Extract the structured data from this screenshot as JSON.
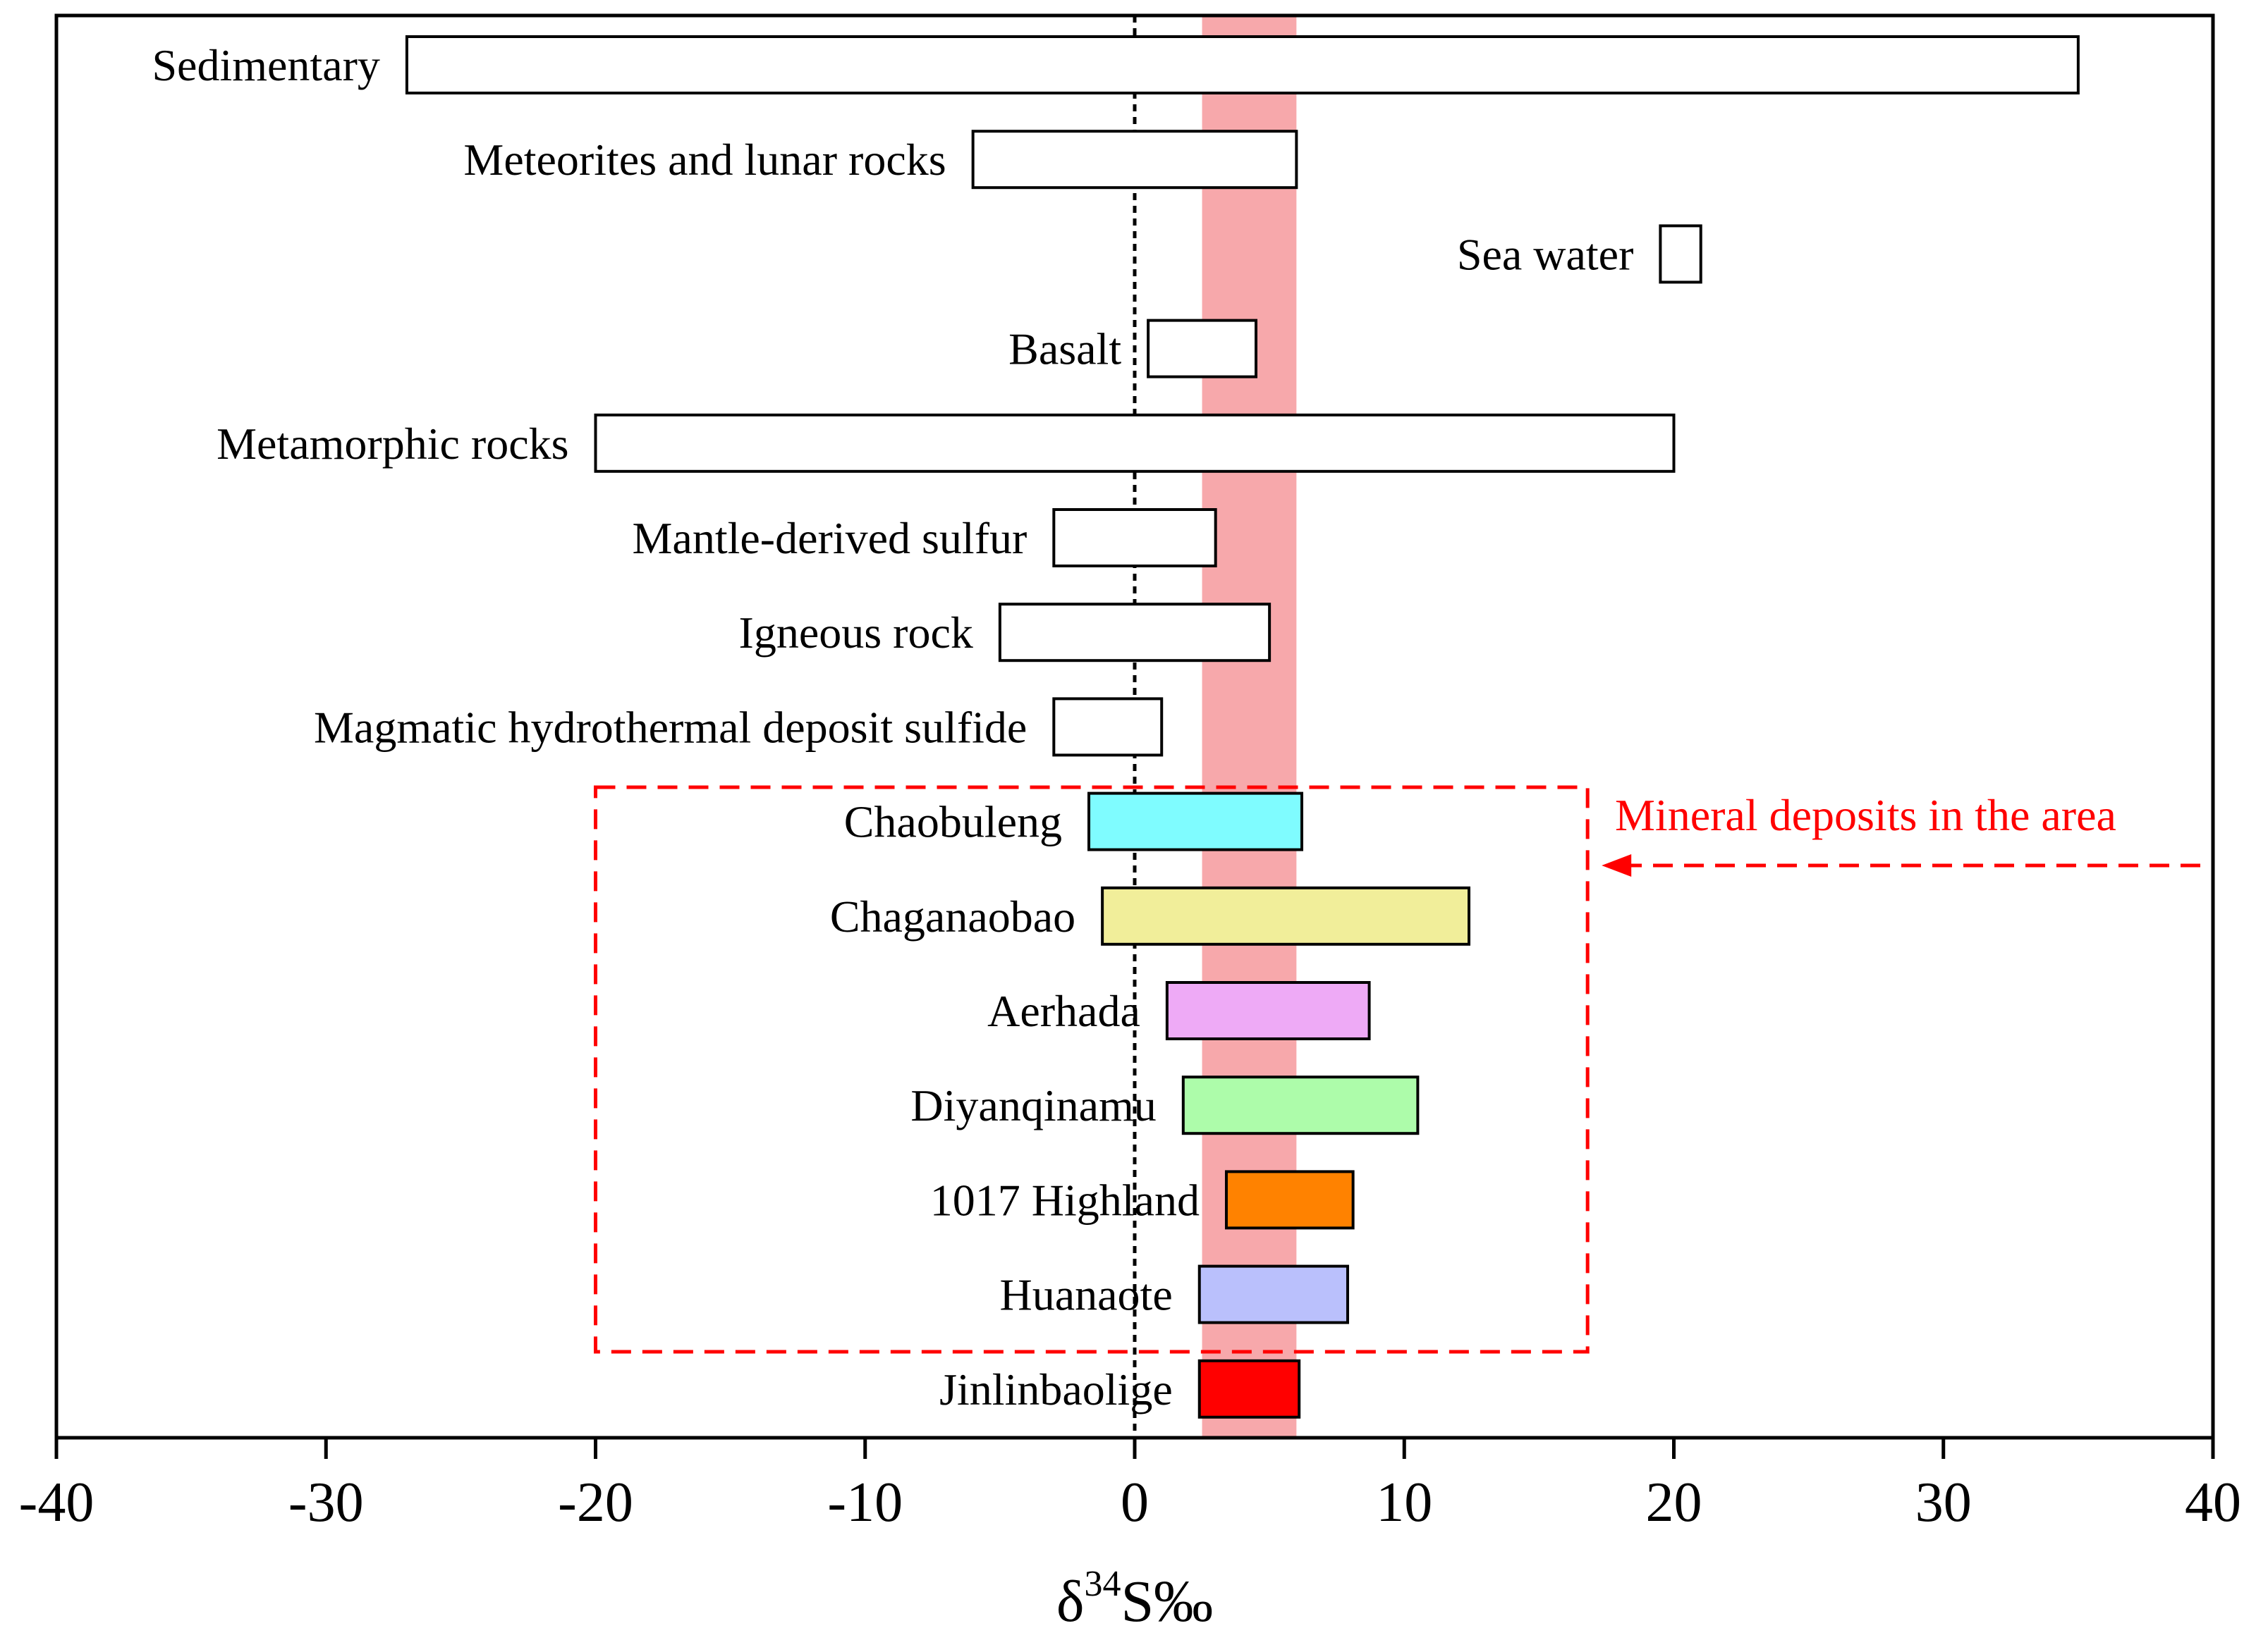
{
  "chart_data": {
    "type": "range-bar",
    "xlabel": "δ34S‰",
    "xlabel_parts": {
      "delta": "δ",
      "sup": "34",
      "rest": "S‰"
    },
    "xlim": [
      -40,
      40
    ],
    "xticks": [
      "-40",
      "-30",
      "-20",
      "-10",
      "0",
      "10",
      "20",
      "30",
      "40"
    ],
    "reference_line": {
      "x": 0,
      "style": "dotted"
    },
    "highlight_band": {
      "range": [
        2.5,
        6.0
      ],
      "color": "#f7a8ab"
    },
    "bars": [
      {
        "label": "Sedimentary",
        "min": -27,
        "max": 35,
        "fill": "#ffffff"
      },
      {
        "label": "Meteorites and lunar rocks",
        "min": -6,
        "max": 6,
        "fill": "#ffffff"
      },
      {
        "label": "Sea water",
        "min": 19.5,
        "max": 21,
        "fill": "#ffffff"
      },
      {
        "label": "Basalt",
        "min": 0.5,
        "max": 4.5,
        "fill": "#ffffff"
      },
      {
        "label": "Metamorphic rocks",
        "min": -20,
        "max": 20,
        "fill": "#ffffff"
      },
      {
        "label": "Mantle-derived sulfur",
        "min": -3,
        "max": 3,
        "fill": "#ffffff"
      },
      {
        "label": "Igneous rock",
        "min": -5,
        "max": 5,
        "fill": "#ffffff"
      },
      {
        "label": "Magmatic hydrothermal deposit sulfide",
        "min": -3,
        "max": 1,
        "fill": "#ffffff"
      },
      {
        "label": "Chaobuleng",
        "min": -1.7,
        "max": 6.2,
        "fill": "#7ffcff"
      },
      {
        "label": "Chaganaobao",
        "min": -1.2,
        "max": 12.4,
        "fill": "#f1ee9a"
      },
      {
        "label": "Aerhada",
        "min": 1.2,
        "max": 8.7,
        "fill": "#eeaaf6"
      },
      {
        "label": "Diyanqinamu",
        "min": 1.8,
        "max": 10.5,
        "fill": "#adfcaa"
      },
      {
        "label": "1017 Highland",
        "min": 3.4,
        "max": 8.1,
        "fill": "#ff8200"
      },
      {
        "label": "Huanaote",
        "min": 2.4,
        "max": 7.9,
        "fill": "#bac0fc"
      },
      {
        "label": "Jinlinbaolige",
        "min": 2.4,
        "max": 6.1,
        "fill": "#ff0000"
      }
    ],
    "group_box": {
      "label": "Mineral deposits in the area",
      "x_range": [
        -20,
        16.8
      ],
      "members": [
        "Chaobuleng",
        "Chaganaobao",
        "Aerhada",
        "Diyanqinamu",
        "1017 Highland",
        "Huanaote"
      ],
      "color": "#ff0000"
    }
  }
}
